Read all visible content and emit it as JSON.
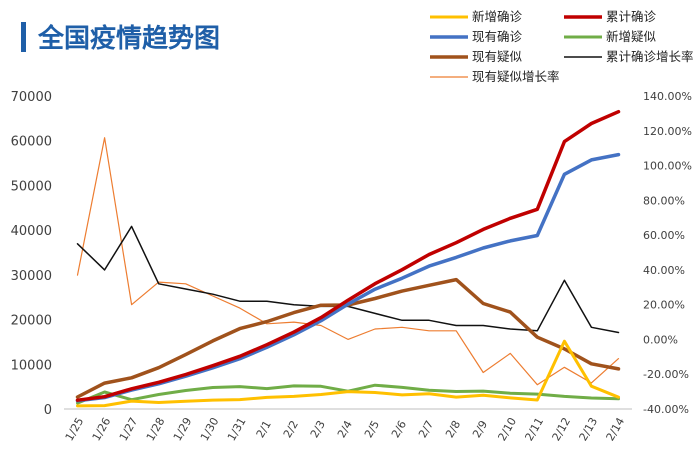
{
  "chart_data": {
    "type": "line",
    "title": "全国疫情趋势图",
    "categories": [
      "1/25",
      "1/26",
      "1/27",
      "1/28",
      "1/29",
      "1/30",
      "1/31",
      "2/1",
      "2/2",
      "2/3",
      "2/4",
      "2/5",
      "2/6",
      "2/7",
      "2/8",
      "2/9",
      "2/10",
      "2/11",
      "2/12",
      "2/13",
      "2/14"
    ],
    "y_left": {
      "ylim": [
        0,
        70000
      ],
      "ticks": [
        "0",
        "10000",
        "20000",
        "30000",
        "40000",
        "50000",
        "60000",
        "70000"
      ]
    },
    "y_right": {
      "ylim": [
        -40,
        140
      ],
      "ticks": [
        "-40.00%",
        "-20.00%",
        "0.00%",
        "20.00%",
        "40.00%",
        "60.00%",
        "80.00%",
        "100.00%",
        "120.00%",
        "140.00%"
      ]
    },
    "series": [
      {
        "name": "新增确诊",
        "axis": "left",
        "color": "#ffc000",
        "width": 3,
        "values": [
          688,
          769,
          1771,
          1459,
          1737,
          1982,
          2102,
          2590,
          2829,
          3235,
          3887,
          3694,
          3143,
          3399,
          2656,
          3062,
          2478,
          2015,
          15152,
          5090,
          2641
        ]
      },
      {
        "name": "累计确诊",
        "axis": "left",
        "color": "#c00000",
        "width": 3.5,
        "values": [
          1975,
          2744,
          4515,
          5974,
          7711,
          9692,
          11791,
          14380,
          17205,
          20438,
          24324,
          28018,
          31161,
          34546,
          37198,
          40171,
          42638,
          44653,
          59804,
          63851,
          66492
        ]
      },
      {
        "name": "现有确诊",
        "axis": "left",
        "color": "#4472c4",
        "width": 3.5,
        "values": [
          1846,
          2565,
          4231,
          5638,
          7336,
          9224,
          11241,
          13800,
          16600,
          19750,
          23450,
          26800,
          29250,
          31950,
          33900,
          36000,
          37600,
          38800,
          52500,
          55700,
          56900
        ]
      },
      {
        "name": "新增疑似",
        "axis": "left",
        "color": "#70ad47",
        "width": 3,
        "values": [
          1309,
          3806,
          2077,
          3248,
          4148,
          4812,
          5019,
          4562,
          5173,
          5072,
          3971,
          5328,
          4833,
          4214,
          3916,
          4008,
          3536,
          3342,
          2807,
          2450,
          2277
        ]
      },
      {
        "name": "现有疑似",
        "axis": "left",
        "color": "#a0521c",
        "width": 3.5,
        "values": [
          2684,
          5794,
          6973,
          9239,
          12167,
          15238,
          17988,
          19544,
          21558,
          23214,
          23260,
          24702,
          26359,
          27657,
          28942,
          23589,
          21675,
          16067,
          13435,
          10109,
          8969
        ]
      },
      {
        "name": "累计确诊增长率",
        "axis": "right",
        "color": "#111111",
        "width": 1.5,
        "values": [
          55,
          40,
          65,
          32,
          29,
          26,
          22,
          22,
          20,
          19,
          19,
          15,
          11,
          11,
          8,
          8,
          6,
          5,
          34,
          7,
          4
        ]
      },
      {
        "name": "现有疑似增长率",
        "axis": "right",
        "color": "#ed7d31",
        "width": 1.2,
        "values": [
          37,
          116,
          20,
          33,
          32,
          25,
          18,
          9,
          10,
          8,
          0,
          6,
          7,
          5,
          5,
          -19,
          -8,
          -26,
          -16,
          -25,
          -11
        ]
      }
    ]
  }
}
